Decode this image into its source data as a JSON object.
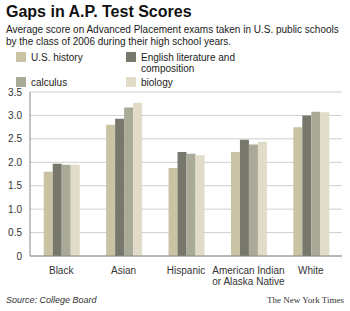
{
  "chart_data": {
    "type": "bar",
    "title": "Gaps in A.P. Test Scores",
    "subtitle": "Average score on Advanced Placement exams taken in U.S. public schools by the class of 2006 during their high school years.",
    "categories": [
      "Black",
      "Asian",
      "Hispanic",
      "American Indian or Alaska Native",
      "White"
    ],
    "series": [
      {
        "name": "U.S. history",
        "color": "#c9c3a3",
        "values": [
          1.8,
          2.8,
          1.88,
          2.22,
          2.75
        ]
      },
      {
        "name": "English literature and composition",
        "color": "#77776b",
        "values": [
          1.97,
          2.93,
          2.22,
          2.48,
          3.0
        ]
      },
      {
        "name": "calculus",
        "color": "#a9aa97",
        "values": [
          1.95,
          3.17,
          2.18,
          2.38,
          3.08
        ]
      },
      {
        "name": "biology",
        "color": "#e0dcc8",
        "values": [
          1.95,
          3.27,
          2.15,
          2.44,
          3.07
        ]
      }
    ],
    "ylim": [
      0,
      3.5
    ],
    "yticks": [
      0,
      0.5,
      {
        "value": 1,
        "label": "1.0"
      },
      1.5,
      {
        "value": 2,
        "label": "2.0"
      },
      2.5,
      {
        "value": 3,
        "label": "3.0"
      },
      3.5
    ],
    "grid": true,
    "legend": "top",
    "source": "Source: College Board",
    "credit": "The New York Times"
  }
}
